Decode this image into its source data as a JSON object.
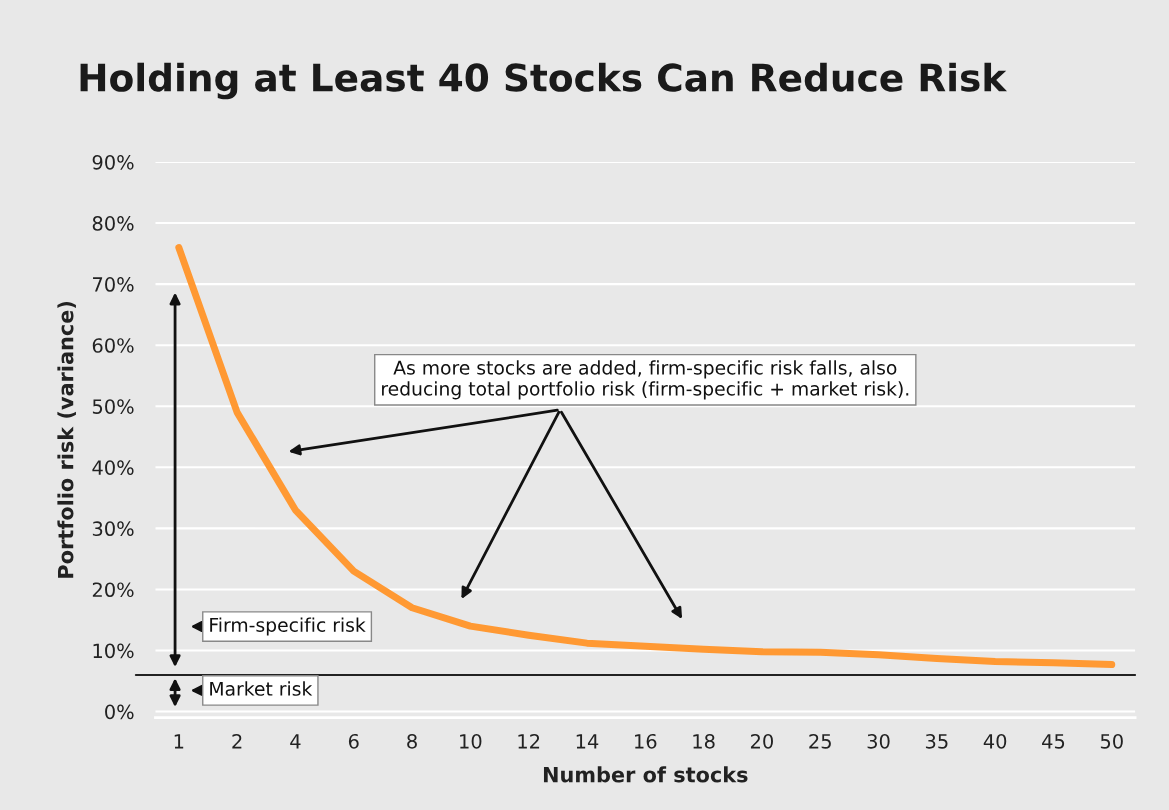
{
  "chart_data": {
    "type": "line",
    "title": "Holding at Least 40 Stocks Can Reduce Risk",
    "xlabel": "Number of stocks",
    "ylabel": "Portfolio risk (variance)",
    "categories": [
      "1",
      "2",
      "4",
      "6",
      "8",
      "10",
      "12",
      "14",
      "16",
      "18",
      "20",
      "25",
      "30",
      "35",
      "40",
      "45",
      "50"
    ],
    "series": [
      {
        "color": "#ff9933",
        "values": [
          76,
          49,
          33,
          23,
          17,
          14,
          12.5,
          11.2,
          10.7,
          10.2,
          9.8,
          9.7,
          9.3,
          8.7,
          8.2,
          8.0,
          7.7
        ]
      }
    ],
    "ylim": [
      -1,
      90
    ],
    "yticks": [
      {
        "value": 0,
        "label": "0%"
      },
      {
        "value": 10,
        "label": "10%"
      },
      {
        "value": 20,
        "label": "20%"
      },
      {
        "value": 30,
        "label": "30%"
      },
      {
        "value": 40,
        "label": "40%"
      },
      {
        "value": 50,
        "label": "50%"
      },
      {
        "value": 60,
        "label": "60%"
      },
      {
        "value": 70,
        "label": "70%"
      },
      {
        "value": 80,
        "label": "80%"
      },
      {
        "value": 90,
        "label": "90%"
      }
    ],
    "ref_lines": [
      {
        "axis": "y",
        "value": 6,
        "color": "#222222"
      }
    ],
    "annotations": [
      "As more stocks are added, firm-specific risk falls, also\nreducing total portfolio risk (firm-specific + market risk).",
      "Firm-specific risk",
      "Market risk"
    ],
    "grid": "y",
    "legend": false,
    "marker": "none",
    "line_style": "solid"
  }
}
